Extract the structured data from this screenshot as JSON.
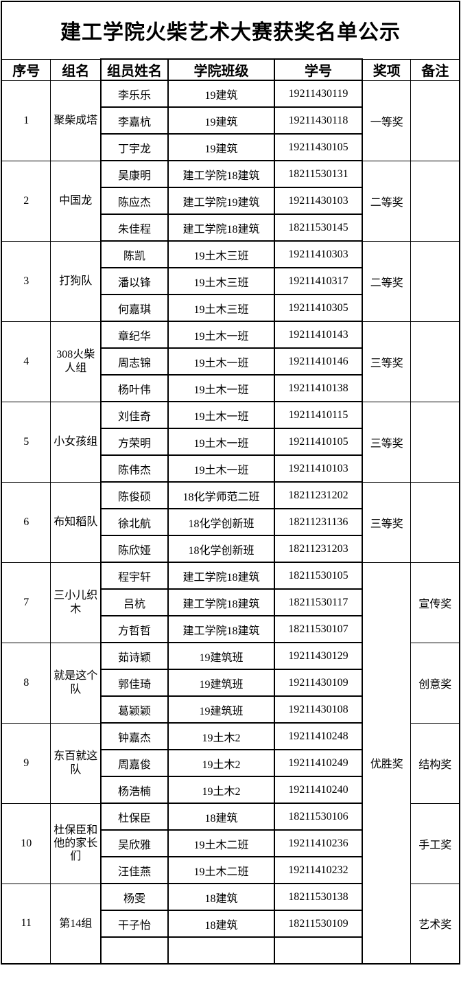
{
  "title": "建工学院火柴艺术大赛获奖名单公示",
  "columns": [
    {
      "key": "no",
      "label": "序号"
    },
    {
      "key": "group",
      "label": "组名"
    },
    {
      "key": "member",
      "label": "组员姓名"
    },
    {
      "key": "class",
      "label": "学院班级"
    },
    {
      "key": "student_id",
      "label": "学号"
    },
    {
      "key": "award",
      "label": "奖项"
    },
    {
      "key": "remark",
      "label": "备注"
    }
  ],
  "overall_award": {
    "label": "优胜奖",
    "applies_to_group_nos": [
      "7",
      "8",
      "9",
      "10",
      "11"
    ]
  },
  "groups": [
    {
      "no": "1",
      "name": "聚柴成塔",
      "award": "一等奖",
      "remark": "",
      "members": [
        {
          "name": "李乐乐",
          "class": "19建筑",
          "student_id": "19211430119"
        },
        {
          "name": "李嘉杭",
          "class": "19建筑",
          "student_id": "19211430118"
        },
        {
          "name": "丁宇龙",
          "class": "19建筑",
          "student_id": "19211430105"
        }
      ]
    },
    {
      "no": "2",
      "name": "中国龙",
      "award": "二等奖",
      "remark": "",
      "members": [
        {
          "name": "吴康明",
          "class": "建工学院18建筑",
          "student_id": "18211530131"
        },
        {
          "name": "陈应杰",
          "class": "建工学院19建筑",
          "student_id": "19211430103"
        },
        {
          "name": "朱佳程",
          "class": "建工学院18建筑",
          "student_id": "18211530145"
        }
      ]
    },
    {
      "no": "3",
      "name": "打狗队",
      "award": "二等奖",
      "remark": "",
      "members": [
        {
          "name": "陈凯",
          "class": "19土木三班",
          "student_id": "19211410303"
        },
        {
          "name": "潘以锋",
          "class": "19土木三班",
          "student_id": "19211410317"
        },
        {
          "name": "何嘉琪",
          "class": "19土木三班",
          "student_id": "19211410305"
        }
      ]
    },
    {
      "no": "4",
      "name": "308火柴人组",
      "award": "三等奖",
      "remark": "",
      "members": [
        {
          "name": "章纪华",
          "class": "19土木一班",
          "student_id": "19211410143"
        },
        {
          "name": "周志锦",
          "class": "19土木一班",
          "student_id": "19211410146"
        },
        {
          "name": "杨叶伟",
          "class": "19土木一班",
          "student_id": "19211410138"
        }
      ]
    },
    {
      "no": "5",
      "name": "小女孩组",
      "award": "三等奖",
      "remark": "",
      "members": [
        {
          "name": "刘佳奇",
          "class": "19土木一班",
          "student_id": "19211410115"
        },
        {
          "name": "方荣明",
          "class": "19土木一班",
          "student_id": "19211410105"
        },
        {
          "name": "陈伟杰",
          "class": "19土木一班",
          "student_id": "19211410103"
        }
      ]
    },
    {
      "no": "6",
      "name": "布知稻队",
      "award": "三等奖",
      "remark": "",
      "members": [
        {
          "name": "陈俊硕",
          "class": "18化学师范二班",
          "student_id": "18211231202"
        },
        {
          "name": "徐北航",
          "class": "18化学创新班",
          "student_id": "18211231136"
        },
        {
          "name": "陈欣娅",
          "class": "18化学创新班",
          "student_id": "18211231203"
        }
      ]
    },
    {
      "no": "7",
      "name": "三小儿织木",
      "award": null,
      "remark": "宣传奖",
      "members": [
        {
          "name": "程宇轩",
          "class": "建工学院18建筑",
          "student_id": "18211530105"
        },
        {
          "name": "吕杭",
          "class": "建工学院18建筑",
          "student_id": "18211530117"
        },
        {
          "name": "方哲哲",
          "class": "建工学院18建筑",
          "student_id": "18211530107"
        }
      ]
    },
    {
      "no": "8",
      "name": "就是这个队",
      "award": null,
      "remark": "创意奖",
      "members": [
        {
          "name": "茹诗颖",
          "class": "19建筑班",
          "student_id": "19211430129"
        },
        {
          "name": "郭佳琦",
          "class": "19建筑班",
          "student_id": "19211430109"
        },
        {
          "name": "葛颖颖",
          "class": "19建筑班",
          "student_id": "19211430108"
        }
      ]
    },
    {
      "no": "9",
      "name": "东百就这队",
      "award": null,
      "remark": "结构奖",
      "members": [
        {
          "name": "钟嘉杰",
          "class": "19土木2",
          "student_id": "19211410248"
        },
        {
          "name": "周嘉俊",
          "class": "19土木2",
          "student_id": "19211410249"
        },
        {
          "name": "杨浩楠",
          "class": "19土木2",
          "student_id": "19211410240"
        }
      ]
    },
    {
      "no": "10",
      "name": "杜保臣和他的家长们",
      "award": null,
      "remark": "手工奖",
      "members": [
        {
          "name": "杜保臣",
          "class": "18建筑",
          "student_id": "18211530106"
        },
        {
          "name": "吴欣雅",
          "class": "19土木二班",
          "student_id": "19211410236"
        },
        {
          "name": "汪佳燕",
          "class": "19土木二班",
          "student_id": "19211410232"
        }
      ]
    },
    {
      "no": "11",
      "name": "第14组",
      "award": null,
      "remark": "艺术奖",
      "members": [
        {
          "name": "杨雯",
          "class": "18建筑",
          "student_id": "18211530138"
        },
        {
          "name": "干子怡",
          "class": "18建筑",
          "student_id": "18211530109"
        },
        {
          "name": "",
          "class": "",
          "student_id": ""
        }
      ]
    }
  ],
  "colors": {
    "background": "#ffffff",
    "border": "#000000",
    "text": "#000000"
  }
}
